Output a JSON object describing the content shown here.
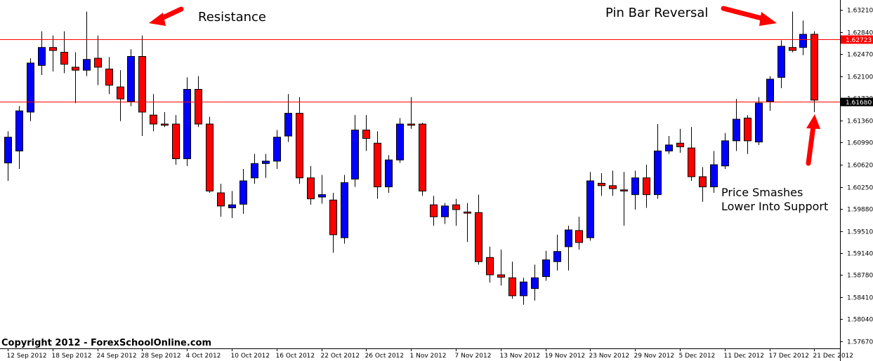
{
  "chart_data": {
    "type": "candlestick",
    "title": "",
    "ylim": [
      1.5755,
      1.6335
    ],
    "y_ticks": [
      "1.63210",
      "1.62840",
      "1.62470",
      "1.62100",
      "1.61730",
      "1.61360",
      "1.60990",
      "1.60620",
      "1.60250",
      "1.59880",
      "1.59510",
      "1.59140",
      "1.58780",
      "1.58410",
      "1.58040",
      "1.57670"
    ],
    "x_ticks": [
      "12 Sep 2012",
      "18 Sep 2012",
      "24 Sep 2012",
      "28 Sep 2012",
      "4 Oct 2012",
      "10 Oct 2012",
      "16 Oct 2012",
      "22 Oct 2012",
      "26 Oct 2012",
      "1 Nov 2012",
      "7 Nov 2012",
      "13 Nov 2012",
      "19 Nov 2012",
      "23 Nov 2012",
      "29 Nov 2012",
      "5 Dec 2012",
      "11 Dec 2012",
      "17 Dec 2012",
      "21 Dec 2012"
    ],
    "x_tick_index": [
      0,
      4,
      8,
      12,
      16,
      20,
      24,
      28,
      32,
      36,
      40,
      44,
      48,
      52,
      56,
      60,
      64,
      68,
      72
    ],
    "bull_color": "#0000ff",
    "bear_color": "#ff0000",
    "grid": false,
    "candles": [
      {
        "o": 1.6065,
        "h": 1.6118,
        "l": 1.6035,
        "c": 1.6108
      },
      {
        "o": 1.6085,
        "h": 1.616,
        "l": 1.6055,
        "c": 1.6152
      },
      {
        "o": 1.615,
        "h": 1.624,
        "l": 1.6135,
        "c": 1.6232
      },
      {
        "o": 1.6228,
        "h": 1.6285,
        "l": 1.6212,
        "c": 1.6258
      },
      {
        "o": 1.6258,
        "h": 1.6278,
        "l": 1.6218,
        "c": 1.6253
      },
      {
        "o": 1.625,
        "h": 1.6285,
        "l": 1.6215,
        "c": 1.623
      },
      {
        "o": 1.6225,
        "h": 1.625,
        "l": 1.6165,
        "c": 1.622
      },
      {
        "o": 1.622,
        "h": 1.6318,
        "l": 1.621,
        "c": 1.6238
      },
      {
        "o": 1.624,
        "h": 1.6278,
        "l": 1.6195,
        "c": 1.6225
      },
      {
        "o": 1.6222,
        "h": 1.6242,
        "l": 1.618,
        "c": 1.6195
      },
      {
        "o": 1.6192,
        "h": 1.622,
        "l": 1.6135,
        "c": 1.6172
      },
      {
        "o": 1.6168,
        "h": 1.6255,
        "l": 1.616,
        "c": 1.6243
      },
      {
        "o": 1.6243,
        "h": 1.6278,
        "l": 1.611,
        "c": 1.615
      },
      {
        "o": 1.6145,
        "h": 1.618,
        "l": 1.6118,
        "c": 1.613
      },
      {
        "o": 1.613,
        "h": 1.615,
        "l": 1.6125,
        "c": 1.6128
      },
      {
        "o": 1.613,
        "h": 1.6145,
        "l": 1.6062,
        "c": 1.6072
      },
      {
        "o": 1.6072,
        "h": 1.6208,
        "l": 1.606,
        "c": 1.6188
      },
      {
        "o": 1.6188,
        "h": 1.621,
        "l": 1.6125,
        "c": 1.613
      },
      {
        "o": 1.613,
        "h": 1.6142,
        "l": 1.6015,
        "c": 1.6018
      },
      {
        "o": 1.6015,
        "h": 1.603,
        "l": 1.5975,
        "c": 1.5993
      },
      {
        "o": 1.599,
        "h": 1.6018,
        "l": 1.5973,
        "c": 1.5995
      },
      {
        "o": 1.5996,
        "h": 1.6055,
        "l": 1.598,
        "c": 1.6035
      },
      {
        "o": 1.604,
        "h": 1.608,
        "l": 1.603,
        "c": 1.6064
      },
      {
        "o": 1.6064,
        "h": 1.608,
        "l": 1.604,
        "c": 1.6068
      },
      {
        "o": 1.6068,
        "h": 1.612,
        "l": 1.6055,
        "c": 1.6108
      },
      {
        "o": 1.611,
        "h": 1.618,
        "l": 1.61,
        "c": 1.6148
      },
      {
        "o": 1.6148,
        "h": 1.6175,
        "l": 1.603,
        "c": 1.604
      },
      {
        "o": 1.604,
        "h": 1.606,
        "l": 1.5995,
        "c": 1.6005
      },
      {
        "o": 1.6008,
        "h": 1.6045,
        "l": 1.5997,
        "c": 1.6012
      },
      {
        "o": 1.6003,
        "h": 1.6015,
        "l": 1.5915,
        "c": 1.5945
      },
      {
        "o": 1.594,
        "h": 1.6045,
        "l": 1.593,
        "c": 1.6032
      },
      {
        "o": 1.6038,
        "h": 1.6145,
        "l": 1.6025,
        "c": 1.612
      },
      {
        "o": 1.612,
        "h": 1.6145,
        "l": 1.6085,
        "c": 1.6106
      },
      {
        "o": 1.6098,
        "h": 1.6118,
        "l": 1.6005,
        "c": 1.6025
      },
      {
        "o": 1.6025,
        "h": 1.6078,
        "l": 1.6015,
        "c": 1.607
      },
      {
        "o": 1.607,
        "h": 1.614,
        "l": 1.6065,
        "c": 1.613
      },
      {
        "o": 1.613,
        "h": 1.6175,
        "l": 1.6122,
        "c": 1.6128
      },
      {
        "o": 1.613,
        "h": 1.6132,
        "l": 1.601,
        "c": 1.6018
      },
      {
        "o": 1.5995,
        "h": 1.601,
        "l": 1.596,
        "c": 1.5975
      },
      {
        "o": 1.5975,
        "h": 1.5998,
        "l": 1.5963,
        "c": 1.5993
      },
      {
        "o": 1.5995,
        "h": 1.6005,
        "l": 1.596,
        "c": 1.5987
      },
      {
        "o": 1.5983,
        "h": 1.5998,
        "l": 1.5933,
        "c": 1.5981
      },
      {
        "o": 1.5982,
        "h": 1.6012,
        "l": 1.5895,
        "c": 1.59
      },
      {
        "o": 1.5907,
        "h": 1.5925,
        "l": 1.5865,
        "c": 1.5878
      },
      {
        "o": 1.5878,
        "h": 1.592,
        "l": 1.586,
        "c": 1.5874
      },
      {
        "o": 1.5873,
        "h": 1.59,
        "l": 1.5838,
        "c": 1.5843
      },
      {
        "o": 1.5843,
        "h": 1.5873,
        "l": 1.5828,
        "c": 1.5866
      },
      {
        "o": 1.5855,
        "h": 1.5895,
        "l": 1.5835,
        "c": 1.5873
      },
      {
        "o": 1.5875,
        "h": 1.5918,
        "l": 1.5868,
        "c": 1.5903
      },
      {
        "o": 1.59,
        "h": 1.5945,
        "l": 1.5885,
        "c": 1.5917
      },
      {
        "o": 1.5925,
        "h": 1.596,
        "l": 1.5885,
        "c": 1.5953
      },
      {
        "o": 1.5952,
        "h": 1.5975,
        "l": 1.592,
        "c": 1.5932
      },
      {
        "o": 1.594,
        "h": 1.605,
        "l": 1.5935,
        "c": 1.6035
      },
      {
        "o": 1.6031,
        "h": 1.6048,
        "l": 1.601,
        "c": 1.6027
      },
      {
        "o": 1.6027,
        "h": 1.6052,
        "l": 1.601,
        "c": 1.6022
      },
      {
        "o": 1.602,
        "h": 1.605,
        "l": 1.596,
        "c": 1.6018
      },
      {
        "o": 1.6012,
        "h": 1.6052,
        "l": 1.5987,
        "c": 1.604
      },
      {
        "o": 1.604,
        "h": 1.6062,
        "l": 1.599,
        "c": 1.6012
      },
      {
        "o": 1.6012,
        "h": 1.613,
        "l": 1.6005,
        "c": 1.6085
      },
      {
        "o": 1.6085,
        "h": 1.611,
        "l": 1.608,
        "c": 1.6095
      },
      {
        "o": 1.6098,
        "h": 1.6122,
        "l": 1.6082,
        "c": 1.6092
      },
      {
        "o": 1.609,
        "h": 1.6125,
        "l": 1.6035,
        "c": 1.6042
      },
      {
        "o": 1.6042,
        "h": 1.6058,
        "l": 1.6,
        "c": 1.6025
      },
      {
        "o": 1.6025,
        "h": 1.6085,
        "l": 1.6015,
        "c": 1.6062
      },
      {
        "o": 1.606,
        "h": 1.6115,
        "l": 1.6055,
        "c": 1.6102
      },
      {
        "o": 1.6102,
        "h": 1.6172,
        "l": 1.6085,
        "c": 1.6138
      },
      {
        "o": 1.614,
        "h": 1.6145,
        "l": 1.608,
        "c": 1.6102
      },
      {
        "o": 1.61,
        "h": 1.6175,
        "l": 1.6095,
        "c": 1.6165
      },
      {
        "o": 1.6168,
        "h": 1.621,
        "l": 1.6152,
        "c": 1.6205
      },
      {
        "o": 1.6208,
        "h": 1.627,
        "l": 1.619,
        "c": 1.626
      },
      {
        "o": 1.6258,
        "h": 1.6318,
        "l": 1.625,
        "c": 1.6253
      },
      {
        "o": 1.6258,
        "h": 1.6303,
        "l": 1.6245,
        "c": 1.628
      },
      {
        "o": 1.628,
        "h": 1.6285,
        "l": 1.615,
        "c": 1.617
      }
    ],
    "hlines": [
      {
        "value": 1.62723,
        "label": "1.62723"
      },
      {
        "value": 1.6168,
        "label": "1.61680"
      }
    ],
    "annotations": [
      {
        "text": "Resistance"
      },
      {
        "text": "Pin Bar Reversal"
      },
      {
        "text": "Price Smashes"
      },
      {
        "text": "Lower Into Support"
      }
    ],
    "copyright": "Copyright 2012 - ForexSchoolOnline.com"
  }
}
